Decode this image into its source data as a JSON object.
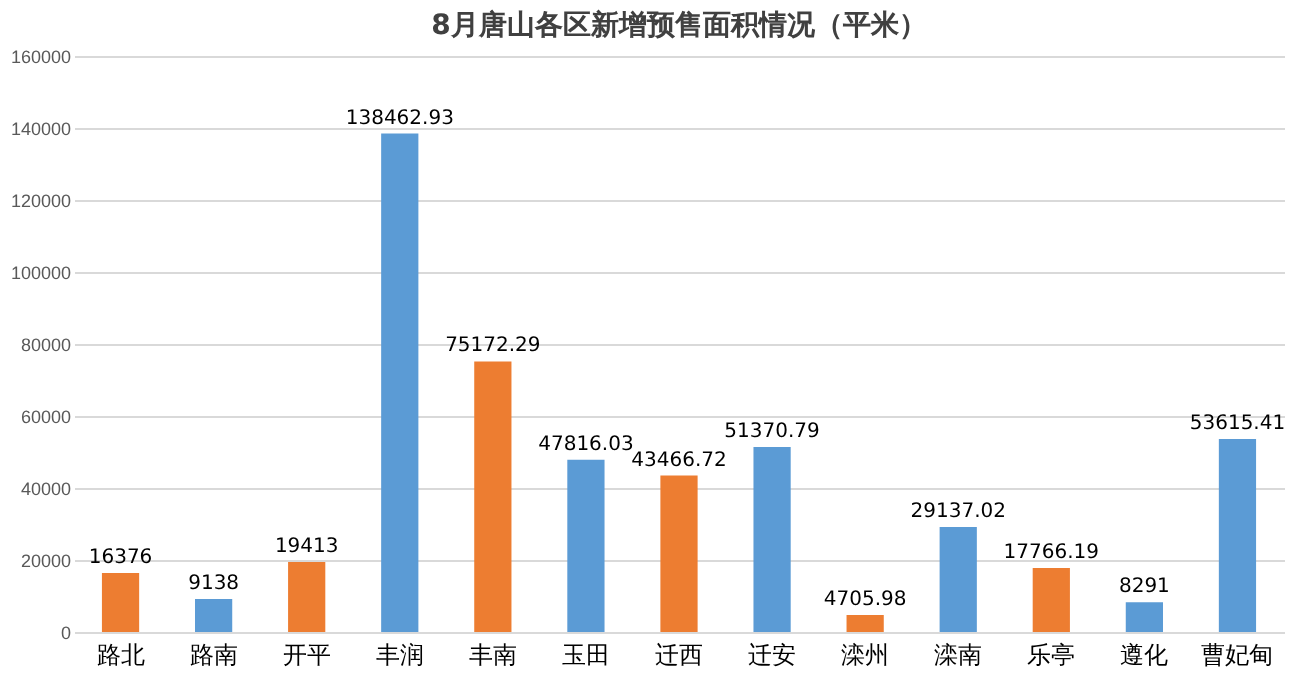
{
  "chart_data": {
    "type": "bar",
    "title": "8月唐山各区新增预售面积情况（平米）",
    "categories": [
      "路北",
      "路南",
      "开平",
      "丰润",
      "丰南",
      "玉田",
      "迁西",
      "迁安",
      "滦州",
      "滦南",
      "乐亭",
      "遵化",
      "曹妃甸"
    ],
    "values": [
      16376,
      9138,
      19413,
      138462.93,
      75172.29,
      47816.03,
      43466.72,
      51370.79,
      4705.98,
      29137.02,
      17766.19,
      8291,
      53615.41
    ],
    "colors": [
      "#ed7d31",
      "#5b9bd5",
      "#ed7d31",
      "#5b9bd5",
      "#ed7d31",
      "#5b9bd5",
      "#ed7d31",
      "#5b9bd5",
      "#ed7d31",
      "#5b9bd5",
      "#ed7d31",
      "#5b9bd5",
      "#5b9bd5"
    ],
    "ylim": [
      0,
      160000
    ],
    "yticks": [
      0,
      20000,
      40000,
      60000,
      80000,
      100000,
      120000,
      140000,
      160000
    ],
    "grid": "y",
    "data_labels": true
  }
}
